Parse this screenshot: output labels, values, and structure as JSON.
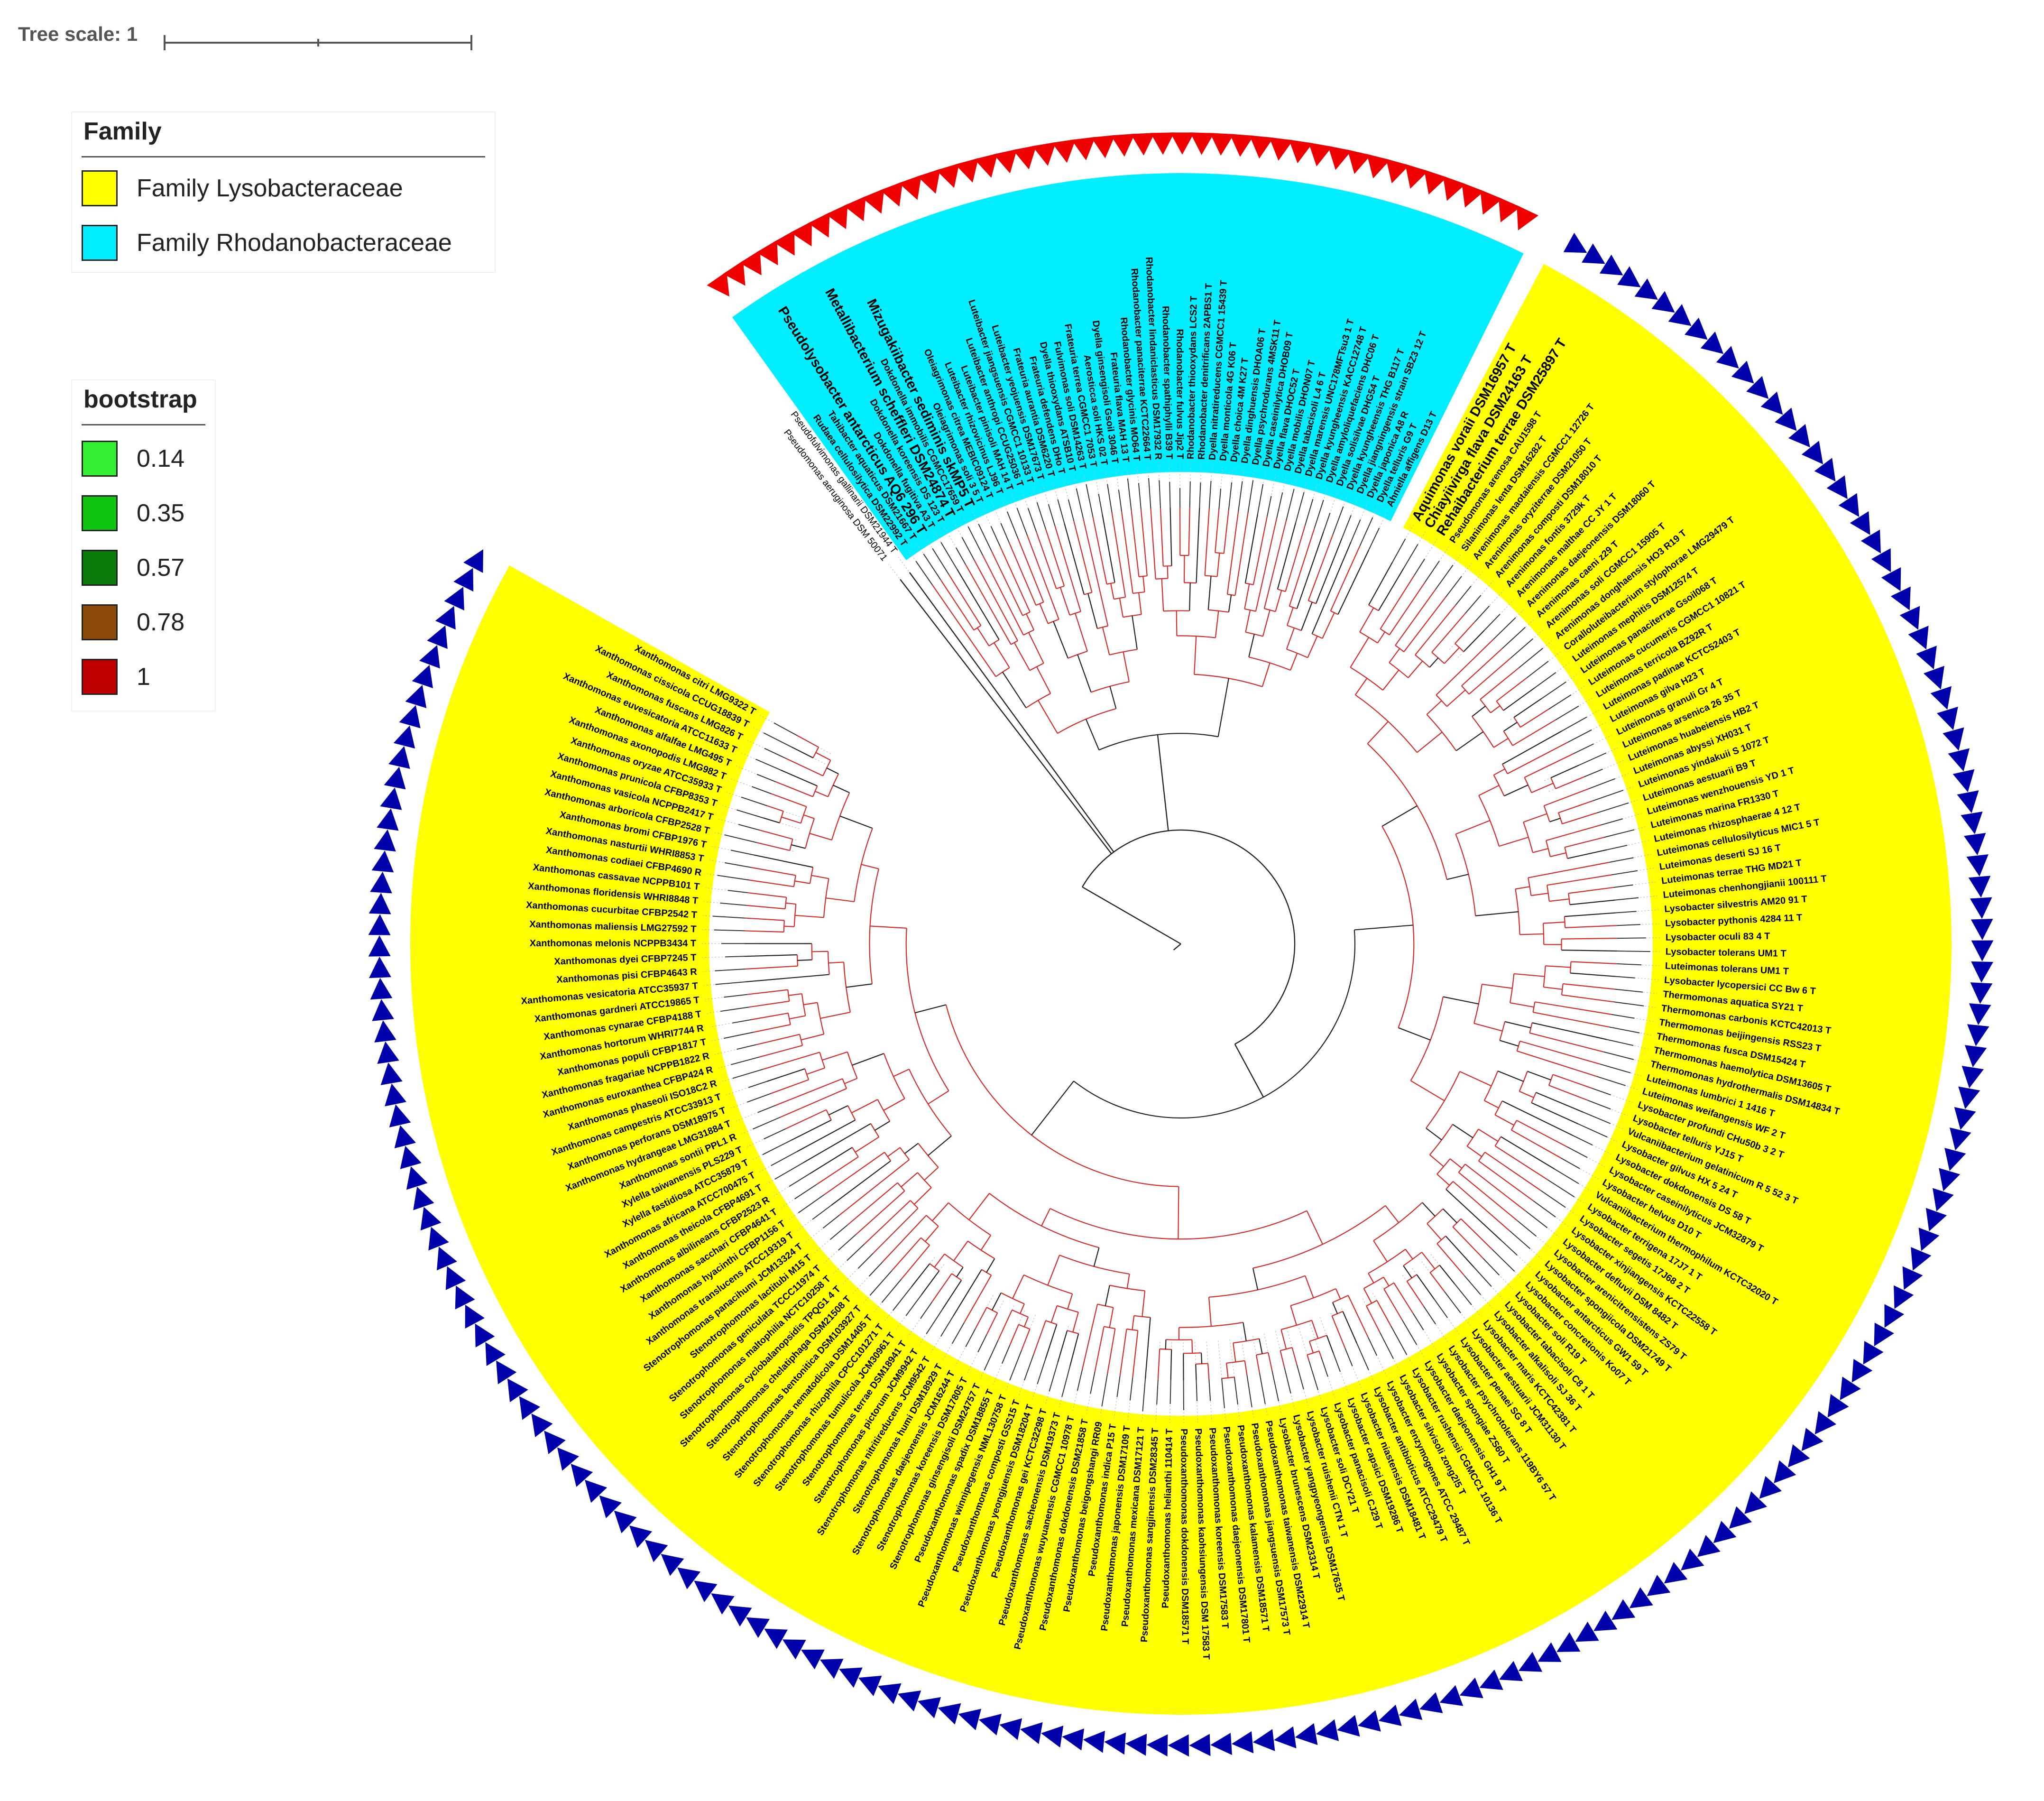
{
  "scale": {
    "label": "Tree scale: 1"
  },
  "legends": {
    "family": {
      "title": "Family",
      "items": [
        {
          "label": "Family Lysobacteraceae",
          "color": "#ffff00"
        },
        {
          "label": "Family Rhodanobacteraceae",
          "color": "#00eeff"
        }
      ]
    },
    "bootstrap": {
      "title": "bootstrap",
      "items": [
        {
          "label": "0.14",
          "color": "#33ee33"
        },
        {
          "label": "0.35",
          "color": "#11c311"
        },
        {
          "label": "0.57",
          "color": "#0a7a0a"
        },
        {
          "label": "0.78",
          "color": "#8b4a0c"
        },
        {
          "label": "1",
          "color": "#c00000"
        }
      ]
    }
  },
  "colors": {
    "lyso": "#ffff00",
    "rhodano": "#00eeff",
    "lyso_marker": "#0000aa",
    "rhodano_marker": "#ee0000",
    "branch_supported": "#d42a2a",
    "branch_other": "#222222"
  },
  "outgroup": [
    "Pseudomonas aeruginosa DSM 50071",
    "Pseudofulvimonas gallinarii DSM21944 T"
  ],
  "rhodanobacteraceae": [
    "Rudaea cellulosilytica DSM22992 T",
    "Tahibacter aquaticus DSM21667 T",
    "Pseudolysobacter antarcticus AQ6 296 T",
    "Dokdonella fugitiva A3 T",
    "Dokdonella koreensis DS 123 T",
    "Metallibacterium scheffleri DSM24874 T",
    "Dokdonella immobilis CGMCC17659 T",
    "Mizugakiibacter sediminis skMP5 T",
    "Oleiagrimonas soli 3 5 T",
    "Oleiagrimonas citrea MEBIC09124 T",
    "Luteibacter rhizovicinus LJ96 T",
    "Luteibacter pinisoli MAH 14 T",
    "Luteibacter anthropi CCUG25036 T",
    "Luteibacter jiangsuensis CGMCC1 10133 T",
    "Luteibacter yeojuensis DSM17673 T",
    "Frateuria aurantia DSM6220 T",
    "Frateuria defendens DHo T",
    "Dyella thiooxydans ATSB10 T",
    "Fulvimonas soli DSM14263 T",
    "Frateuria terrea CGMCC1 7053 T",
    "Aerosticca soli HKS 02 T",
    "Dyella ginsengisoli Gsoil 3046 T",
    "Frateuria flava MAH 13 T",
    "Rhodanobacter glycinis MO64 T",
    "Rhodanobacter panaciterrae KCTC22664 T",
    "Rhodanobacter lindaniclasticus DSM17932 R",
    "Rhodanobacter spathiphylli B39 T",
    "Rhodanobacter fulvus Jip2 T",
    "Rhodanobacter thiooxydans LCS2 T",
    "Rhodanobacter denitrificans 2APBS1 T",
    "Dyella nitratireducens CGMCC1 15439 T",
    "Dyella monticola 4G K06 T",
    "Dyella choica 4M K27 T",
    "Dyella dinghuensis DHOA06 T",
    "Dyella psychrodurans 4MSK11 T",
    "Dyella caseinilytica DHOB09 T",
    "Dyella flava DHOC52 T",
    "Dyella mobilis DHON07 T",
    "Dyella tabacisoli L4 6 T",
    "Dyella marensis UNC178MFTsu3 1 T",
    "Dyella kyungheensis KACC12748 T",
    "Dyella amyloliquefaciens DHC06 T",
    "Dyella solisilvae DHG54 T",
    "Dyella kyungheensis THG B117 T",
    "Dyella jiangningensis strain SBZ3 12 T",
    "Dyella japonica A8 R",
    "Dyella telluris G9 T",
    "Ahniella affigens D13 T"
  ],
  "lysobacteraceae": [
    "Aquimonas voraii DSM16957 T",
    "Chiayiivirga flava DSM24163 T",
    "Rehaibacterium terrae DSM25897 T",
    "Pseudomonas arenosa CAU1598 T",
    "Silanimonas lenta DSM16282 T",
    "Arenimonas maotaiensis CGMCC1 12726 T",
    "Arenimonas oryziterrae DSM21050 T",
    "Arenimonas composti DSM18010 T",
    "Arenimonas fontis 3729k T",
    "Arenimonas malthae CC JY 1 T",
    "Arenimonas daejeonensis DSM18060 T",
    "Arenimonas caeni z29 T",
    "Arenimonas soli CGMCC1 15905 T",
    "Arenimonas donghaensis HO3 R19 T",
    "Coralloluteibacterium stylophorae LMG29479 T",
    "Luteimonas mephitis DSM12574 T",
    "Luteimonas panaciterrae Gsoil068 T",
    "Luteimonas cucumeris CGMCC1 10821 T",
    "Luteimonas terricola BZ92R T",
    "Luteimonas padinae KCTC52403 T",
    "Luteimonas gilva H23 T",
    "Luteimonas granuli Gr 4 T",
    "Luteimonas arsenica 26 35 T",
    "Luteimonas huabeiensis HB2 T",
    "Luteimonas abyssi XH031 T",
    "Luteimonas yindakuii S 1072 T",
    "Luteimonas aestuarii B9 T",
    "Luteimonas wenzhouensis YD 1 T",
    "Luteimonas marina FR1330 T",
    "Luteimonas rhizosphaerae 4 12 T",
    "Luteimonas cellulosilyticus MIC1 5 T",
    "Luteimonas deserti SJ 16 T",
    "Luteimonas terrae THG MD21 T",
    "Luteimonas chenhongjianii 100111 T",
    "Lysobacter silvestris AM20 91 T",
    "Lysobacter pythonis 4284 11 T",
    "Lysobacter oculi 83 4 T",
    "Lysobacter tolerans UM1 T",
    "Luteimonas tolerans UM1 T",
    "Lysobacter lycopersici CC Bw 6 T",
    "Thermomonas aquatica SY21 T",
    "Thermomonas carbonis KCTC42013 T",
    "Thermomonas beijingensis RSS23 T",
    "Thermomonas fusca DSM15424 T",
    "Thermomonas haemolytica DSM13605 T",
    "Thermomonas hydrothermalis DSM14834 T",
    "Luteimonas lumbrici 1 1416 T",
    "Luteimonas weifangensis WF 2 T",
    "Lysobacter profundi CHu50b 3 2 T",
    "Lysobacter telluris YJ15 T",
    "Vulcaniibacterium gelatinicum R 5 52 3 T",
    "Lysobacter gilvus HX 5 24 T",
    "Lysobacter dokdonensis DS 58 T",
    "Lysobacter caseinilyticus JCM32879 T",
    "Lysobacter helvus D10 T",
    "Vulcaniibacterium thermophilum KCTC32020 T",
    "Lysobacter terrigena 17J7 1 T",
    "Lysobacter segetis 17J68 2 T",
    "Lysobacter xinjiangensis KCTC22558 T",
    "Lysobacter defluvii DSM 8482 T",
    "Lysobacter arenicitrensistens ZS79 T",
    "Lysobacter spongiicola DSM21749 T",
    "Lysobacter antarcticus GW1 59 T",
    "Lysobacter concretionis Ko07 T",
    "Lysobacter soli R19 T",
    "Lysobacter tabacisoli C8 1 T",
    "Lysobacter alkalisoli SJ 36 T",
    "Lysobacter maris KCTC42381 T",
    "Lysobacter aestuarii JCM31130 T",
    "Lysobacter penaei SG 8 T",
    "Lysobacter psychrotolerans 119BY6 57 T",
    "Lysobacter spongiae ZS60 T",
    "Lysobacter daejeonensis GH1 9 T",
    "Lysobacter rushensii CGMCC1 10136 T",
    "Lysobacter silvisoli zong2l5 T",
    "Lysobacter enzymogenes ATCC 29487 T",
    "Lysobacter antibioticus ATCC29479 T",
    "Lysobacter niastensis DSM18481 T",
    "Lysobacter capsici DSM19286 T",
    "Lysobacter panacisoli CJ29 T",
    "Lysobacter soli DCY21 T",
    "Lysobacter ruishenii CTN 1 T",
    "Lysobacter yangpyeongensis DSM17635 T",
    "Lysobacter brunescens DSM23314 T",
    "Pseudoxanthomonas taiwanensis DSM22914 T",
    "Pseudoxanthomonas jiangsuensis DSM17573 T",
    "Pseudoxanthomonas kalamensis DSM18571 T",
    "Pseudoxanthomonas daejeonensis DSM17801 T",
    "Pseudoxanthomonas koreensis DSM17583 T",
    "Pseudoxanthomonas kaohsiungensis DSM 17583 T",
    "Pseudoxanthomonas dokdonensis DSM18571 T",
    "Pseudoxanthomonas helianthi 110414 T",
    "Pseudoxanthomonas sangjinensis DSM28345 T",
    "Pseudoxanthomonas mexicana DSM17121 T",
    "Pseudoxanthomonas japonensis DSM17109 T",
    "Pseudoxanthomonas indica P15 T",
    "Pseudoxanthomonas beigongshangi RR09",
    "Pseudoxanthomonas dokdonensis DSM21858 T",
    "Pseudoxanthomonas wuyuanensis CGMCC1 10978 T",
    "Pseudoxanthomonas sacheonensis DSM19373 T",
    "Pseudoxanthomonas gei KCTC32298 T",
    "Pseudoxanthomonas yeongjuensis DSM18204 T",
    "Pseudoxanthomonas composti GSS15 T",
    "Pseudoxanthomonas winnipegensis NML130758 T",
    "Pseudoxanthomonas spadix DSM18855 T",
    "Stenotrophomonas ginsengisoli DSM24757 T",
    "Stenotrophomonas koreensis DSM17805 T",
    "Stenotrophomonas daejeonensis JCM16244 T",
    "Stenotrophomonas humi DSM18929 T",
    "Stenotrophomonas nitritireducens JCM9542 T",
    "Stenotrophomonas pictorum JCM9942 T",
    "Stenotrophomonas terrae DSM18941 T",
    "Stenotrophomonas tumulicola JCM30961 T",
    "Stenotrophomonas rhizophila CPCC101271 T",
    "Stenotrophomonas nematodicola DSM14405 T",
    "Stenotrophomonas bentonitica DSM103927 T",
    "Stenotrophomonas chelatiphaga DSM21508 T",
    "Stenotrophomonas cyclobalanopsidis TPQG1 4 T",
    "Stenotrophomonas maltophilia NCTC10258 T",
    "Stenotrophomonas geniculata TCCC11974 T",
    "Stenotrophomonas lactitubi M15 T",
    "Stenotrophomonas panacihumi JCM13324 T",
    "Xanthomonas translucens ATCC19319 T",
    "Xanthomonas hyacinthi CFBP1156 T",
    "Xanthomonas sacchari CFBP4641 T",
    "Xanthomonas albilineans CFBP2523 R",
    "Xanthomonas theicola CFBP4691 T",
    "Xanthomonas africana ATCC700475 T",
    "Xylella fastidiosa ATCC35879 T",
    "Xylella taiwanensis PLS229 T",
    "Xanthomonas sontii PPL1 R",
    "Xanthomonas hydrangeae LMG31884 T",
    "Xanthomonas perforans DSM18975 T",
    "Xanthomonas campestris ATCC33913 T",
    "Xanthomonas phaseoli ISO18C2 R",
    "Xanthomonas euroxanthea CFBP424 R",
    "Xanthomonas fragariae NCPPB1822 R",
    "Xanthomonas populi CFBP1817 T",
    "Xanthomonas hortorum WHRI7744 R",
    "Xanthomonas cynarae CFBP4188 T",
    "Xanthomonas gardneri ATCC19865 T",
    "Xanthomonas vesicatoria ATCC35937 T",
    "Xanthomonas pisi CFBP4643 R",
    "Xanthomonas dyei CFBP7245 T",
    "Xanthomonas melonis NCPPB3434 T",
    "Xanthomonas maliensis LMG27592 T",
    "Xanthomonas cucurbitae CFBP2542 T",
    "Xanthomonas floridensis WHRI8848 T",
    "Xanthomonas cassavae NCPPB101 T",
    "Xanthomonas codiaei CFBP4690 R",
    "Xanthomonas nasturtii WHRI8853 T",
    "Xanthomonas bromi CFBP1976 T",
    "Xanthomonas arboricola CFBP2528 T",
    "Xanthomonas vasicola NCPPB2417 T",
    "Xanthomonas prunicola CFBP8353 T",
    "Xanthomonas oryzae ATCC35933 T",
    "Xanthomonas axonopodis LMG982 T",
    "Xanthomonas alfalfae LMG495 T",
    "Xanthomonas euvesicatoria ATCC11633 T",
    "Xanthomonas fuscans LMG826 T",
    "Xanthomonas cissicola CCUG18839 T",
    "Xanthomonas citri LMG9322 T"
  ]
}
